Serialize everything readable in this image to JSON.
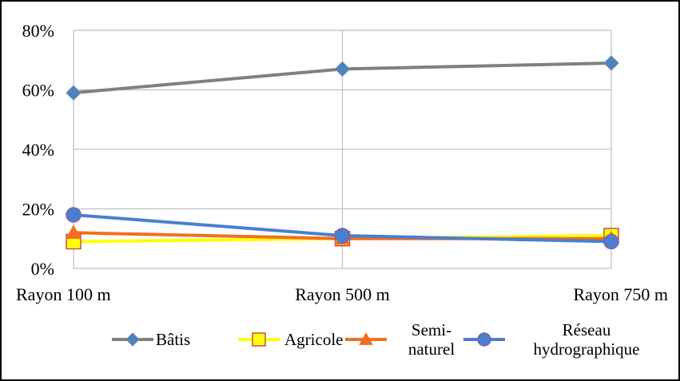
{
  "chart_data": {
    "type": "line",
    "title": "",
    "xlabel": "",
    "ylabel": "",
    "categories": [
      "Rayon 100 m",
      "Rayon 500 m",
      "Rayon 750 m"
    ],
    "y_ticks": [
      "0%",
      "20%",
      "40%",
      "60%",
      "80%"
    ],
    "ylim": [
      0,
      80
    ],
    "grid": true,
    "legend_position": "bottom",
    "series": [
      {
        "name": "Bâtis",
        "values": [
          59,
          67,
          69
        ],
        "color": "#808080",
        "marker": "diamond",
        "marker_color": "#4f81bd"
      },
      {
        "name": "Agricole",
        "values": [
          9,
          10,
          11
        ],
        "color": "#ffff00",
        "marker": "square",
        "marker_color": "#ffff00"
      },
      {
        "name": "Semi-\nnaturel",
        "values": [
          12,
          10,
          10
        ],
        "color": "#f07020",
        "marker": "triangle",
        "marker_color": "#f07020"
      },
      {
        "name": "Réseau\nhydrographique",
        "values": [
          18,
          11,
          9
        ],
        "color": "#4a7fd0",
        "marker": "circle",
        "marker_color": "#4a7fd0"
      }
    ]
  }
}
